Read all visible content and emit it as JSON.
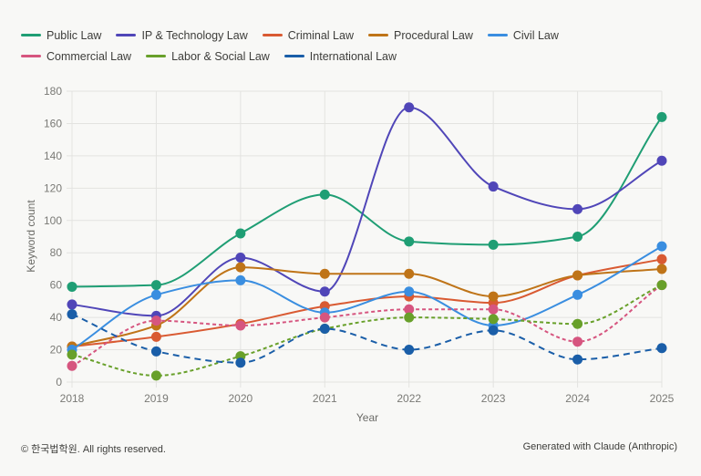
{
  "chart_data": {
    "type": "line",
    "title": "",
    "xlabel": "Year",
    "ylabel": "Keyword count",
    "x": [
      "2018",
      "2019",
      "2020",
      "2021",
      "2022",
      "2023",
      "2024",
      "2025"
    ],
    "ylim": [
      0,
      180
    ],
    "yticks": [
      0,
      20,
      40,
      60,
      80,
      100,
      120,
      140,
      160,
      180
    ],
    "grid": true,
    "legend_position": "top-left",
    "series": [
      {
        "name": "Public Law",
        "color": "#1f9e74",
        "dashed": false,
        "values": [
          59,
          60,
          92,
          116,
          87,
          85,
          90,
          164
        ]
      },
      {
        "name": "IP & Technology Law",
        "color": "#5046b8",
        "dashed": false,
        "values": [
          48,
          41,
          77,
          56,
          170,
          121,
          107,
          137
        ]
      },
      {
        "name": "Criminal Law",
        "color": "#d95a32",
        "dashed": false,
        "values": [
          22,
          28,
          36,
          47,
          53,
          49,
          66,
          76
        ]
      },
      {
        "name": "Procedural Law",
        "color": "#bf7418",
        "dashed": false,
        "values": [
          22,
          35,
          71,
          67,
          67,
          53,
          66,
          70
        ]
      },
      {
        "name": "Civil Law",
        "color": "#3a8ee0",
        "dashed": false,
        "values": [
          20,
          54,
          63,
          43,
          56,
          35,
          54,
          84
        ]
      },
      {
        "name": "Commercial Law",
        "color": "#d6557f",
        "dashed": true,
        "dash": "4,3",
        "values": [
          10,
          38,
          35,
          40,
          45,
          45,
          25,
          60
        ]
      },
      {
        "name": "Labor & Social Law",
        "color": "#68a02a",
        "dashed": true,
        "dash": "4,3",
        "values": [
          17,
          4,
          16,
          33,
          40,
          39,
          36,
          60
        ]
      },
      {
        "name": "International Law",
        "color": "#1a5ea8",
        "dashed": true,
        "dash": "7,5",
        "values": [
          42,
          19,
          12,
          33,
          20,
          32,
          14,
          21
        ]
      }
    ]
  },
  "footer": {
    "copyright": "© 한국법학원. All rights reserved.",
    "credit": "Generated with Claude (Anthropic)"
  }
}
